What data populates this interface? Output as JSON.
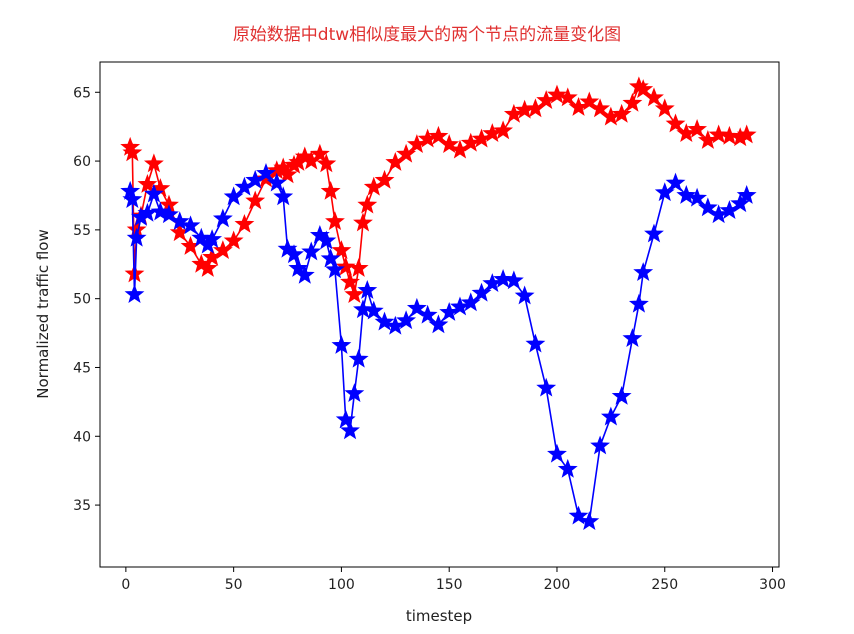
{
  "chart_data": {
    "type": "line",
    "title": "原始数据中dtw相似度最大的两个节点的流量变化图",
    "xlabel": "timestep",
    "ylabel": "Normalized traffic flow",
    "xlim": [
      -12,
      303
    ],
    "ylim": [
      30.5,
      67.2
    ],
    "xticks": [
      0,
      50,
      100,
      150,
      200,
      250,
      300
    ],
    "yticks": [
      35,
      40,
      45,
      50,
      55,
      60,
      65
    ],
    "grid": false,
    "marker": "star",
    "x": [
      2,
      3,
      4,
      5,
      7,
      10,
      13,
      16,
      20,
      25,
      30,
      35,
      38,
      40,
      45,
      50,
      55,
      60,
      65,
      70,
      73,
      75,
      78,
      80,
      83,
      86,
      90,
      93,
      95,
      97,
      100,
      102,
      104,
      106,
      108,
      110,
      112,
      115,
      120,
      125,
      130,
      135,
      140,
      145,
      150,
      155,
      160,
      165,
      170,
      175,
      180,
      185,
      190,
      195,
      200,
      205,
      210,
      215,
      220,
      225,
      230,
      235,
      238,
      240,
      245,
      250,
      255,
      260,
      265,
      270,
      275,
      280,
      285,
      288
    ],
    "series": [
      {
        "color": "#ff0000",
        "values": [
          61,
          60.6,
          51.8,
          55,
          56,
          58.3,
          59.8,
          58,
          56.8,
          54.8,
          53.8,
          52.5,
          52.2,
          53,
          53.5,
          54.2,
          55.4,
          57.1,
          58.7,
          59.3,
          59.5,
          59,
          59.7,
          59.9,
          60.3,
          60,
          60.5,
          59.8,
          57.8,
          55.6,
          53.5,
          52.3,
          51.2,
          50.3,
          52.2,
          55.5,
          56.8,
          58.1,
          58.6,
          59.9,
          60.5,
          61.2,
          61.6,
          61.8,
          61.2,
          60.8,
          61.3,
          61.6,
          62,
          62.2,
          63.4,
          63.7,
          63.8,
          64.4,
          64.8,
          64.6,
          63.9,
          64.3,
          63.8,
          63.2,
          63.4,
          64.2,
          65.4,
          65.2,
          64.6,
          63.8,
          62.7,
          62,
          62.3,
          61.5,
          61.9,
          61.8,
          61.7,
          61.9
        ]
      },
      {
        "color": "#0000ff",
        "values": [
          57.8,
          57.2,
          50.3,
          54.4,
          55.9,
          56.2,
          57.6,
          56.3,
          56.1,
          55.6,
          55.3,
          54.4,
          53.9,
          54.3,
          55.8,
          57.4,
          58.1,
          58.6,
          59.1,
          58.4,
          57.4,
          53.6,
          53.2,
          52.2,
          51.7,
          53.4,
          54.6,
          54.2,
          52.9,
          52.1,
          46.6,
          41.2,
          40.4,
          43.1,
          45.6,
          49.2,
          50.6,
          49.1,
          48.3,
          48,
          48.4,
          49.3,
          48.8,
          48.1,
          49,
          49.4,
          49.7,
          50.4,
          51.1,
          51.4,
          51.3,
          50.2,
          46.7,
          43.5,
          38.7,
          37.6,
          34.2,
          33.8,
          39.3,
          41.4,
          42.9,
          47.1,
          49.6,
          51.9,
          54.7,
          57.7,
          58.4,
          57.5,
          57.3,
          56.6,
          56.1,
          56.4,
          56.9,
          57.5
        ]
      }
    ]
  }
}
